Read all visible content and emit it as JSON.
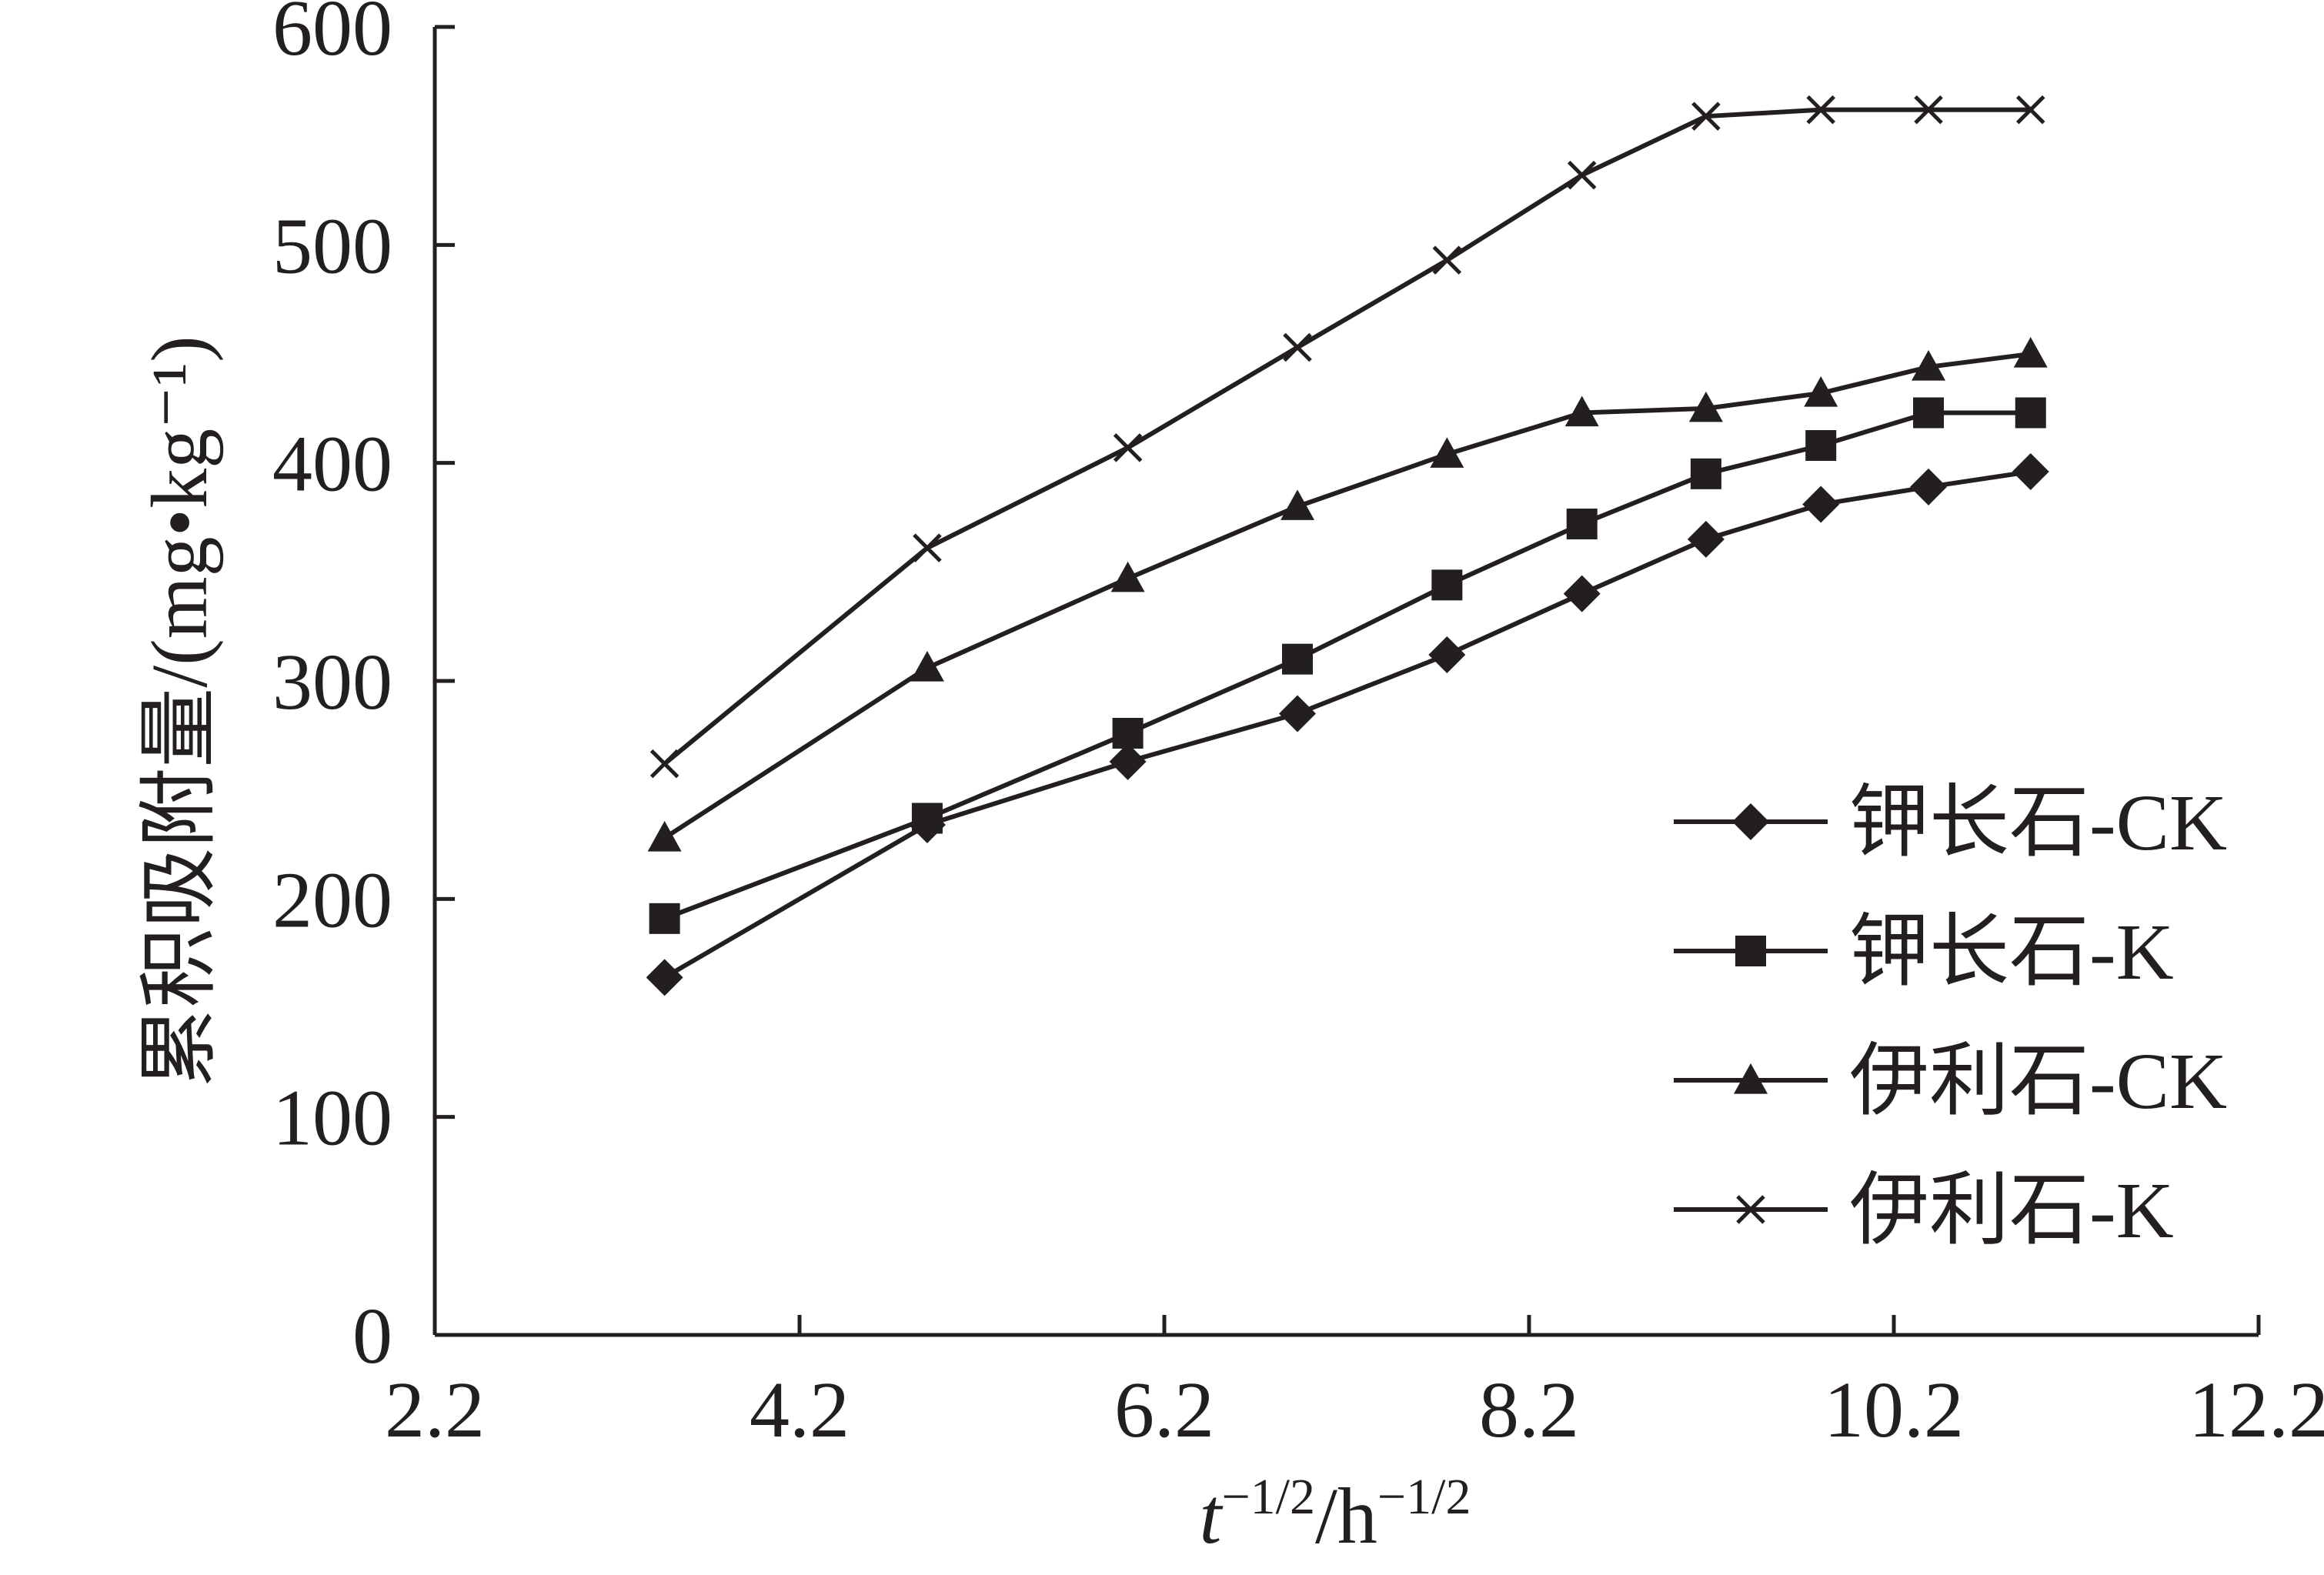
{
  "chart_data": {
    "type": "line",
    "xlabel": {
      "main": "t",
      "sup1": "−1/2",
      "sep": "/h",
      "sup2": "−1/2"
    },
    "ylabel": "累积吸附量/(mg•kg⁻¹)",
    "xlim": [
      2.2,
      12.2
    ],
    "ylim": [
      0,
      600
    ],
    "xticks": [
      "2.2",
      "4.2",
      "6.2",
      "8.2",
      "10.2",
      "12.2"
    ],
    "yticks": [
      "0",
      "100",
      "200",
      "300",
      "400",
      "500",
      "600"
    ],
    "grid": false,
    "legend_position": "right",
    "x": [
      3.46,
      4.9,
      6.0,
      6.93,
      7.75,
      8.49,
      9.17,
      9.8,
      10.39,
      10.95
    ],
    "series": [
      {
        "name": "钾长石-CK",
        "marker": "diamond",
        "values": [
          164,
          234,
          263,
          285,
          312,
          340,
          365,
          381,
          389,
          396
        ]
      },
      {
        "name": "钾长石-K",
        "marker": "square",
        "values": [
          191,
          237,
          276,
          310,
          344,
          372,
          395,
          408,
          423,
          423
        ]
      },
      {
        "name": "伊利石-CK",
        "marker": "triangle",
        "values": [
          228,
          306,
          347,
          380,
          404,
          423,
          425,
          432,
          444,
          450
        ]
      },
      {
        "name": "伊利石-K",
        "marker": "cross",
        "values": [
          262,
          361,
          407,
          453,
          493,
          532,
          559,
          562,
          562,
          562
        ]
      }
    ]
  }
}
